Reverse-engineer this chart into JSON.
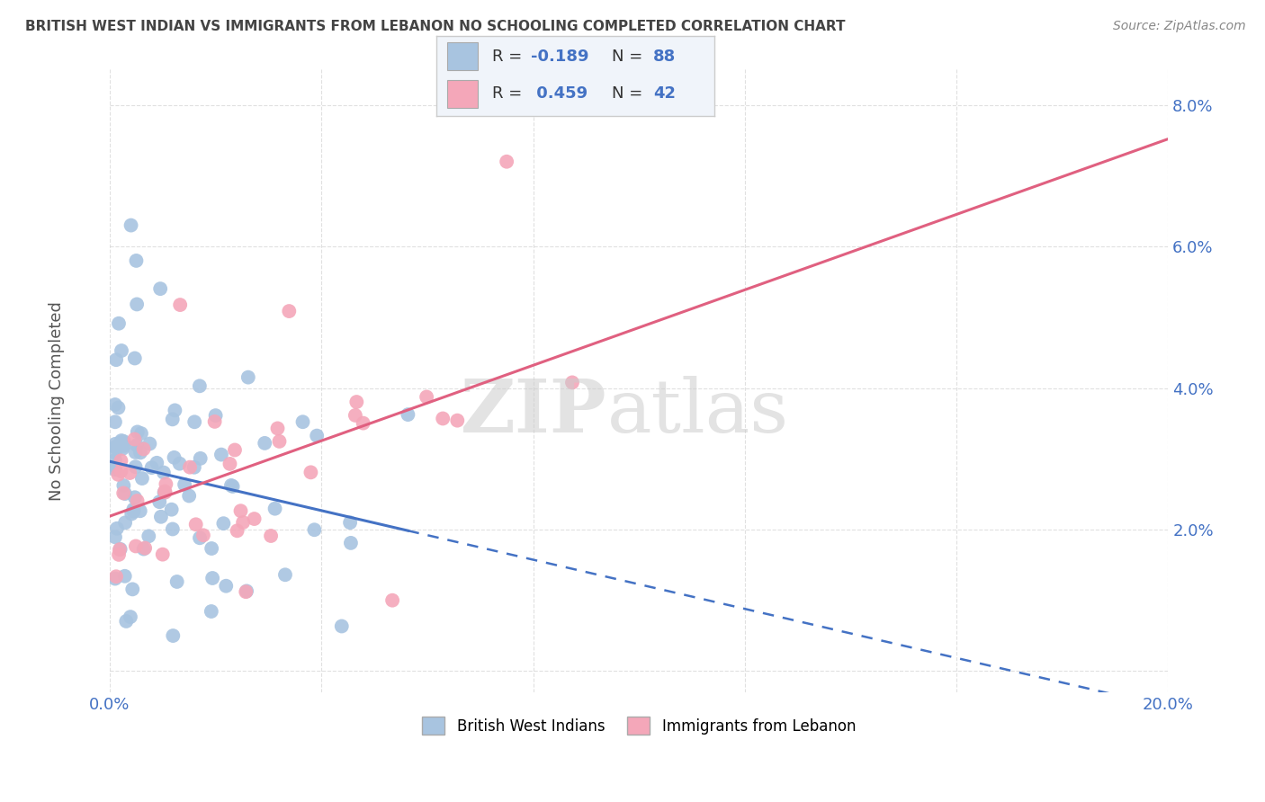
{
  "title": "BRITISH WEST INDIAN VS IMMIGRANTS FROM LEBANON NO SCHOOLING COMPLETED CORRELATION CHART",
  "source": "Source: ZipAtlas.com",
  "ylabel": "No Schooling Completed",
  "series1_label": "British West Indians",
  "series2_label": "Immigrants from Lebanon",
  "series1_color": "#a8c4e0",
  "series2_color": "#f4a7b9",
  "series1_line_color": "#4472c4",
  "series2_line_color": "#e06080",
  "R1": -0.189,
  "N1": 88,
  "R2": 0.459,
  "N2": 42,
  "x_lim": [
    0.0,
    0.2
  ],
  "y_lim": [
    -0.003,
    0.085
  ],
  "y_ticks": [
    0.0,
    0.02,
    0.04,
    0.06,
    0.08
  ],
  "background_color": "#ffffff",
  "grid_color": "#cccccc",
  "axis_label_color": "#4472c4",
  "title_color": "#444444",
  "source_color": "#888888",
  "legend_bg_color": "#f0f4fa"
}
